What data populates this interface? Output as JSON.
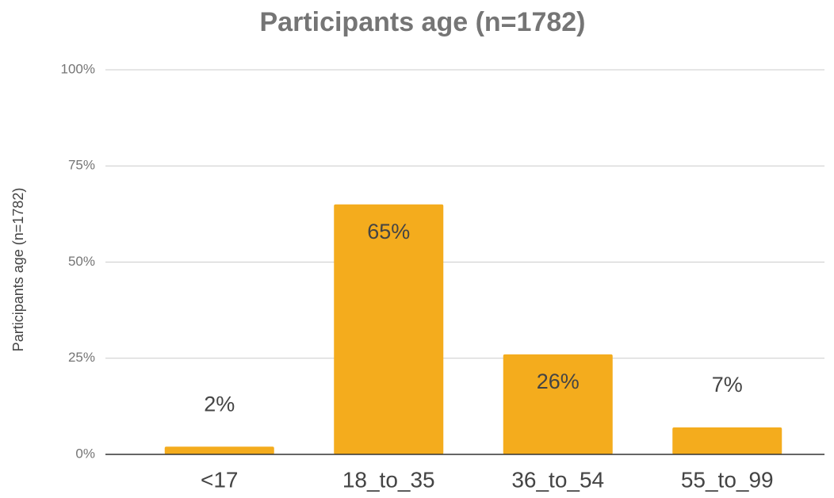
{
  "chart_data": {
    "type": "bar",
    "title": "Participants age (n=1782)",
    "y_axis_label": "Participants age (n=1782)",
    "categories": [
      "<17",
      "18_to_35",
      "36_to_54",
      "55_to_99"
    ],
    "values": [
      2,
      65,
      26,
      7
    ],
    "value_labels": [
      "2%",
      "65%",
      "26%",
      "7%"
    ],
    "color": "#f4ac1d",
    "ylim": [
      0,
      100
    ],
    "yticks": [
      {
        "value": 0,
        "label": "0%"
      },
      {
        "value": 25,
        "label": "25%"
      },
      {
        "value": 50,
        "label": "50%"
      },
      {
        "value": 75,
        "label": "75%"
      },
      {
        "value": 100,
        "label": "100%"
      }
    ],
    "grid": true
  }
}
